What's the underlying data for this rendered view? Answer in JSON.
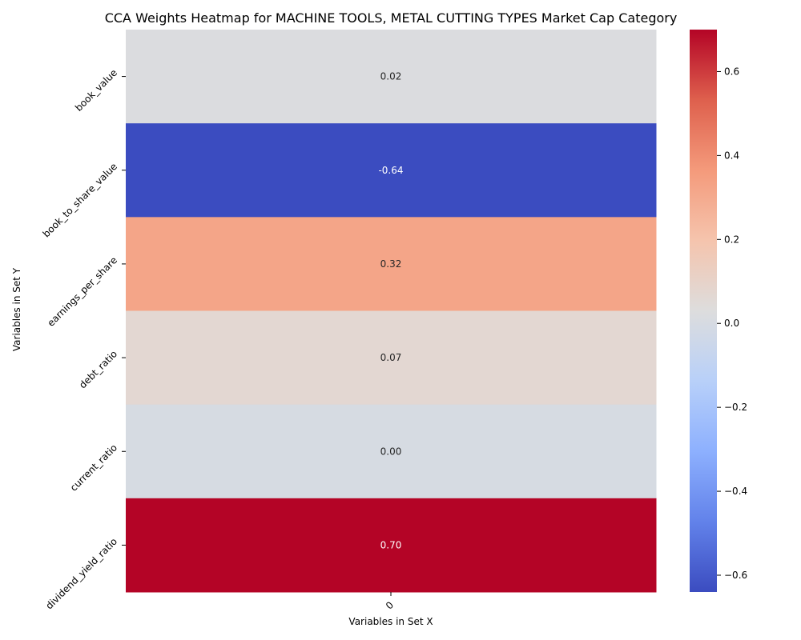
{
  "chart_data": {
    "type": "heatmap",
    "title": "CCA Weights Heatmap for MACHINE TOOLS, METAL CUTTING TYPES Market Cap Category",
    "xlabel": "Variables in Set X",
    "ylabel": "Variables in Set Y",
    "x_categories": [
      "0"
    ],
    "y_categories": [
      "book_value",
      "book_to_share_value",
      "earnings_per_share",
      "debt_ratio",
      "current_ratio",
      "dividend_yield_ratio"
    ],
    "values": [
      [
        0.02
      ],
      [
        -0.64
      ],
      [
        0.32
      ],
      [
        0.07
      ],
      [
        0.0
      ],
      [
        0.7
      ]
    ],
    "value_labels": [
      "0.02",
      "-0.64",
      "0.32",
      "0.07",
      "0.00",
      "0.70"
    ],
    "colormap": "coolwarm",
    "vmin": -0.64,
    "vmax": 0.7,
    "colorbar": {
      "ticks": [
        -0.6,
        -0.4,
        -0.2,
        0.0,
        0.2,
        0.4,
        0.6
      ],
      "tick_labels": [
        "−0.6",
        "−0.4",
        "−0.2",
        "0.0",
        "0.2",
        "0.4",
        "0.6"
      ]
    }
  }
}
